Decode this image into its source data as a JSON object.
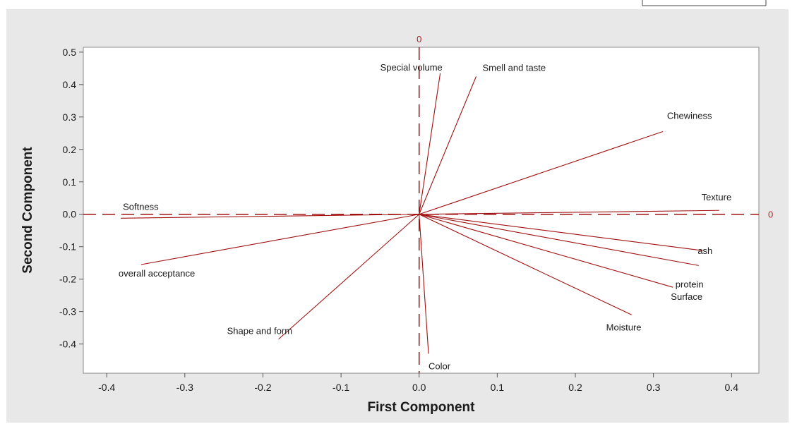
{
  "chart_data": {
    "type": "biplot",
    "title": "",
    "xlabel": "First Component",
    "ylabel": "Second Component",
    "xlim": [
      -0.43,
      0.435
    ],
    "ylim": [
      -0.49,
      0.515
    ],
    "xticks": [
      -0.4,
      -0.3,
      -0.2,
      -0.1,
      0.0,
      0.1,
      0.2,
      0.3,
      0.4
    ],
    "xtick_labels": [
      "-0.4",
      "-0.3",
      "-0.2",
      "-0.1",
      "0.0",
      "0.1",
      "0.2",
      "0.3",
      "0.4"
    ],
    "yticks": [
      -0.4,
      -0.3,
      -0.2,
      -0.1,
      0.0,
      0.1,
      0.2,
      0.3,
      0.4,
      0.5
    ],
    "ytick_labels": [
      "-0.4",
      "-0.3",
      "-0.2",
      "-0.1",
      "0.0",
      "0.1",
      "0.2",
      "0.3",
      "0.4",
      "0.5"
    ],
    "reference_lines": {
      "x": 0,
      "y": 0,
      "x_label": "0",
      "y_label": "0",
      "style": "dashed"
    },
    "grid": false,
    "line_color": "#a01010",
    "vectors": [
      {
        "name": "Special volume",
        "x": 0.027,
        "y": 0.435
      },
      {
        "name": "Smell and taste",
        "x": 0.073,
        "y": 0.425
      },
      {
        "name": "Chewiness",
        "x": 0.312,
        "y": 0.255
      },
      {
        "name": "Texture",
        "x": 0.384,
        "y": 0.012
      },
      {
        "name": "ash",
        "x": 0.363,
        "y": -0.112
      },
      {
        "name": "protein",
        "x": 0.358,
        "y": -0.158
      },
      {
        "name": "Surface",
        "x": 0.325,
        "y": -0.225
      },
      {
        "name": "Moisture",
        "x": 0.272,
        "y": -0.31
      },
      {
        "name": "Color",
        "x": 0.012,
        "y": -0.43
      },
      {
        "name": "Shape and form",
        "x": -0.18,
        "y": -0.385
      },
      {
        "name": "overall acceptance",
        "x": -0.356,
        "y": -0.155
      },
      {
        "name": "Softness",
        "x": -0.382,
        "y": -0.012
      }
    ]
  }
}
